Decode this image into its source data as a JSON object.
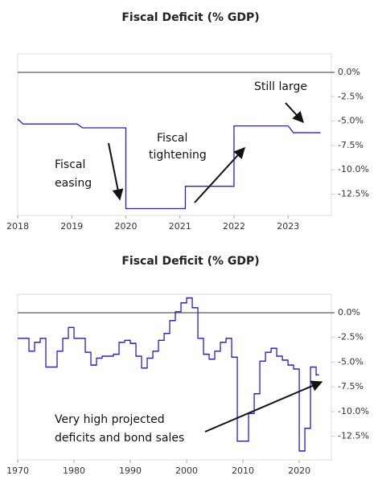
{
  "chart_data": [
    {
      "type": "line",
      "title": "Fiscal Deficit (% GDP)",
      "color": "#2b1bd6",
      "x": [
        2018,
        2018.1,
        2019.1,
        2019.2,
        2020,
        2020,
        2021.1,
        2021.1,
        2022,
        2022,
        2023,
        2023.1,
        2023.6
      ],
      "values": [
        -4.8,
        -5.3,
        -5.3,
        -5.7,
        -5.7,
        -14.0,
        -14.0,
        -11.7,
        -11.7,
        -5.5,
        -5.5,
        -6.2,
        -6.2
      ],
      "xlim": [
        2018,
        2023.8
      ],
      "xticks": [
        2018,
        2019,
        2020,
        2021,
        2022,
        2023
      ],
      "ylim": [
        -14.7,
        1.9
      ],
      "yticks": [
        {
          "value": 0,
          "label": "0.0%"
        },
        {
          "value": -2.5,
          "label": "-2.5%"
        },
        {
          "value": -5,
          "label": "-5.0%"
        },
        {
          "value": -7.5,
          "label": "-7.5%"
        },
        {
          "value": -10,
          "label": "-10.0%"
        },
        {
          "value": -12.5,
          "label": "-12.5%"
        }
      ],
      "annotations": [
        [
          "Fiscal",
          "easing"
        ],
        [
          "Fiscal",
          "tightening"
        ],
        [
          "Still large"
        ]
      ]
    },
    {
      "type": "line",
      "step": true,
      "title": "Fiscal Deficit (% GDP)",
      "color": "#2b1bd6",
      "x": [
        1970,
        1971,
        1972,
        1973,
        1974,
        1975,
        1976,
        1977,
        1978,
        1979,
        1980,
        1981,
        1982,
        1983,
        1984,
        1985,
        1986,
        1987,
        1988,
        1989,
        1990,
        1991,
        1992,
        1993,
        1994,
        1995,
        1996,
        1997,
        1998,
        1999,
        2000,
        2001,
        2002,
        2003,
        2004,
        2005,
        2006,
        2007,
        2008,
        2009,
        2010,
        2011,
        2012,
        2013,
        2014,
        2015,
        2016,
        2017,
        2018,
        2019,
        2020,
        2021,
        2022,
        2023
      ],
      "values": [
        -2.6,
        -2.6,
        -3.9,
        -3.0,
        -2.6,
        -5.5,
        -5.5,
        -3.9,
        -2.6,
        -1.5,
        -2.6,
        -2.6,
        -4.0,
        -5.3,
        -4.6,
        -4.4,
        -4.4,
        -4.2,
        -3.0,
        -2.8,
        -3.1,
        -4.4,
        -5.6,
        -4.6,
        -3.9,
        -2.8,
        -2.1,
        -0.8,
        0.1,
        1.0,
        1.5,
        0.5,
        -2.6,
        -4.2,
        -4.7,
        -3.9,
        -3.0,
        -2.6,
        -4.5,
        -13.0,
        -13.0,
        -10.2,
        -8.2,
        -4.9,
        -4.0,
        -3.6,
        -4.4,
        -4.8,
        -5.3,
        -5.7,
        -14.0,
        -11.7,
        -5.5,
        -6.3
      ],
      "xlim": [
        1970,
        2025.7
      ],
      "xticks": [
        1970,
        1980,
        1990,
        2000,
        2010,
        2020
      ],
      "ylim": [
        -14.9,
        1.87
      ],
      "yticks": [
        {
          "value": 0,
          "label": "0.0%"
        },
        {
          "value": -2.5,
          "label": "-2.5%"
        },
        {
          "value": -5,
          "label": "-5.0%"
        },
        {
          "value": -7.5,
          "label": "-7.5%"
        },
        {
          "value": -10,
          "label": "-10.0%"
        },
        {
          "value": -12.5,
          "label": "-12.5%"
        }
      ],
      "annotations": [
        [
          "Very high projected",
          "deficits and bond sales"
        ]
      ]
    }
  ]
}
